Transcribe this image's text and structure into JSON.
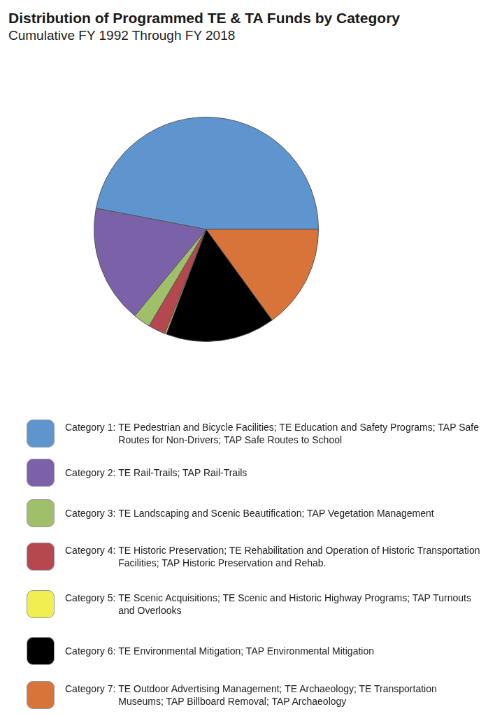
{
  "chart_data": {
    "type": "pie",
    "title": "Distribution of Programmed TE & TA Funds by Category",
    "subtitle": "Cumulative FY 1992 Through FY 2018",
    "categories": [
      "Category 1: TE Pedestrian and Bicycle Facilities; TE Education and Safety Programs; TAP Safe Routes for Non-Drivers; TAP Safe Routes to School",
      "Category 2: TE Rail-Trails; TAP Rail-Trails",
      "Category 3: TE Landscaping and Scenic Beautification; TAP Vegetation Management",
      "Category 4: TE Historic Preservation; TE Rehabilitation and Operation of Historic Transportation Facilities; TAP Historic Preservation and Rehab.",
      "Category 5: TE Scenic Acquisitions; TE Scenic and Historic Highway Programs; TAP Turnouts and Overlooks",
      "Category 6: TE Environmental Mitigation; TAP Environmental Mitigation",
      "Category 7: TE Outdoor Advertising Management; TE Archaeology; TE Transportation Museums; TAP Billboard Removal; TAP Archaeology"
    ],
    "values": [
      47,
      17,
      2.5,
      2.5,
      0.2,
      15.8,
      15
    ],
    "colors": [
      "#5f95cf",
      "#7b62a8",
      "#a0bf6a",
      "#b5474f",
      "#f0ee50",
      "#000000",
      "#d8733a"
    ],
    "legend": "bottom"
  }
}
